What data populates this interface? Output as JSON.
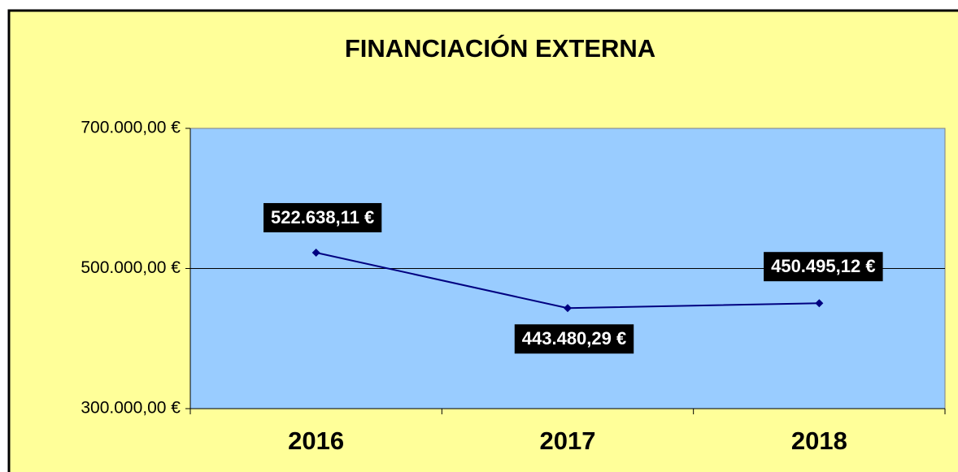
{
  "chart_data": {
    "type": "line",
    "title": "FINANCIACIÓN EXTERNA",
    "categories": [
      "2016",
      "2017",
      "2018"
    ],
    "series": [
      {
        "name": "Financiación externa",
        "color": "#000080",
        "values": [
          522638.11,
          443480.29,
          450495.12
        ],
        "value_labels": [
          "522.638,11 €",
          "443.480,29 €",
          "450.495,12 €"
        ]
      }
    ],
    "ylim": [
      300000,
      700000
    ],
    "yticks": [
      {
        "value": 300000,
        "label": "300.000,00 €"
      },
      {
        "value": 500000,
        "label": "500.000,00 €"
      },
      {
        "value": 700000,
        "label": "700.000,00 €"
      }
    ],
    "grid": true
  }
}
